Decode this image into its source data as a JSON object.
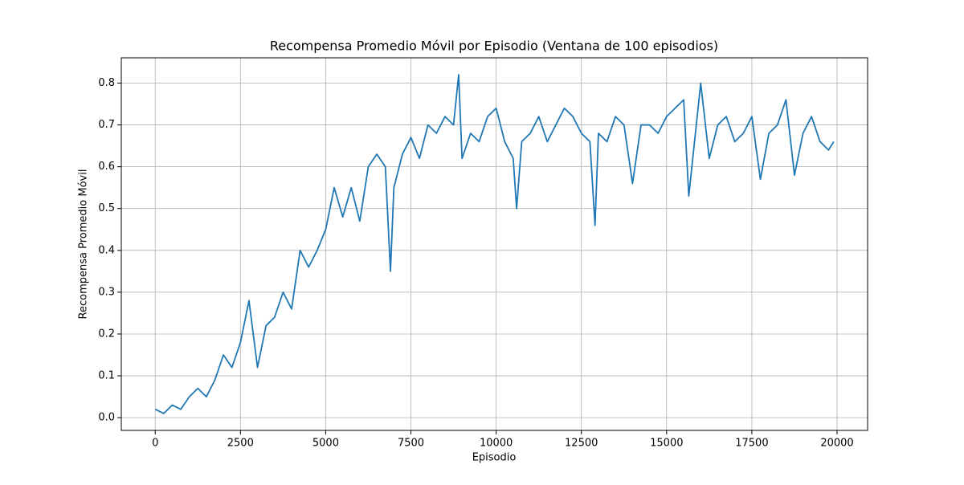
{
  "chart_data": {
    "type": "line",
    "title": "Recompensa Promedio Móvil por Episodio (Ventana de 100 episodios)",
    "x_label": "Episodio",
    "y_label": "Recompensa Promedio Móvil",
    "grid": true,
    "xlim": [
      -995,
      20895
    ],
    "ylim": [
      -0.0305,
      0.8605
    ],
    "xticks": [
      0,
      2500,
      5000,
      7500,
      10000,
      12500,
      15000,
      17500,
      20000
    ],
    "yticks": [
      {
        "value": 0,
        "label": "0.0"
      },
      0.1,
      0.2,
      0.3,
      0.4,
      0.5,
      0.6,
      0.7,
      0.8
    ],
    "x": [
      0,
      250,
      500,
      750,
      1000,
      1250,
      1500,
      1750,
      2000,
      2250,
      2500,
      2750,
      3000,
      3250,
      3500,
      3750,
      4000,
      4250,
      4500,
      4750,
      5000,
      5250,
      5500,
      5750,
      6000,
      6250,
      6500,
      6750,
      6900,
      7000,
      7250,
      7500,
      7750,
      8000,
      8250,
      8500,
      8750,
      8900,
      9000,
      9250,
      9500,
      9750,
      10000,
      10250,
      10500,
      10600,
      10750,
      11000,
      11250,
      11500,
      11750,
      12000,
      12250,
      12500,
      12750,
      12900,
      13000,
      13250,
      13500,
      13750,
      14000,
      14250,
      14500,
      14750,
      15000,
      15250,
      15500,
      15650,
      16000,
      16250,
      16500,
      16750,
      17000,
      17250,
      17500,
      17750,
      18000,
      18250,
      18500,
      18750,
      19000,
      19250,
      19500,
      19750,
      19900
    ],
    "series": [
      {
        "name": "Recompensa",
        "color": "#1f77b4",
        "values": [
          0.02,
          0.01,
          0.03,
          0.02,
          0.05,
          0.07,
          0.05,
          0.09,
          0.15,
          0.12,
          0.18,
          0.28,
          0.12,
          0.22,
          0.24,
          0.3,
          0.26,
          0.4,
          0.36,
          0.4,
          0.45,
          0.55,
          0.48,
          0.55,
          0.47,
          0.6,
          0.63,
          0.6,
          0.35,
          0.55,
          0.63,
          0.67,
          0.62,
          0.7,
          0.68,
          0.72,
          0.7,
          0.82,
          0.62,
          0.68,
          0.66,
          0.72,
          0.74,
          0.66,
          0.62,
          0.5,
          0.66,
          0.68,
          0.72,
          0.66,
          0.7,
          0.74,
          0.72,
          0.68,
          0.66,
          0.46,
          0.68,
          0.66,
          0.72,
          0.7,
          0.56,
          0.7,
          0.7,
          0.68,
          0.72,
          0.74,
          0.76,
          0.53,
          0.8,
          0.62,
          0.7,
          0.72,
          0.66,
          0.68,
          0.72,
          0.57,
          0.68,
          0.7,
          0.76,
          0.58,
          0.68,
          0.72,
          0.66,
          0.64,
          0.66
        ]
      }
    ]
  }
}
